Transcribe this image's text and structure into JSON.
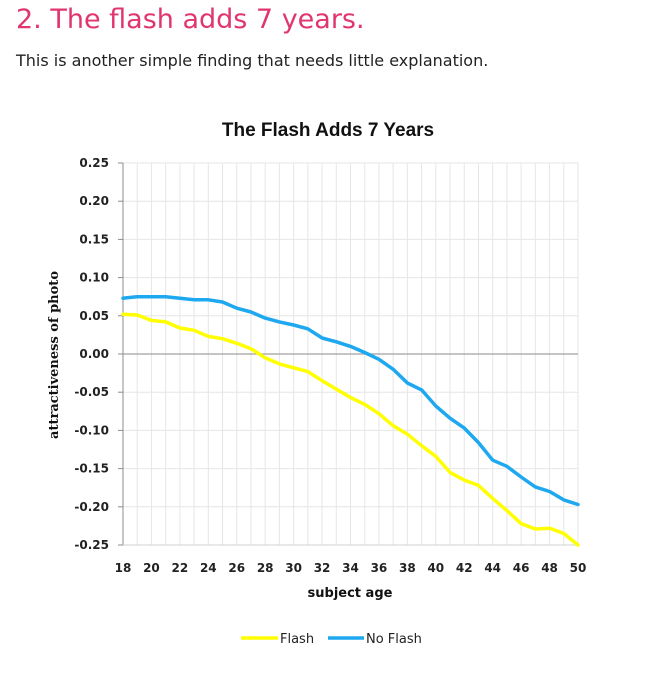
{
  "article": {
    "heading": "2. The flash adds 7 years.",
    "intro": "This is another simple finding that needs little explanation."
  },
  "chart_data": {
    "type": "line",
    "title": "The Flash Adds 7 Years",
    "xlabel": "subject age",
    "ylabel": "attractiveness of photo",
    "xlim": [
      18,
      50
    ],
    "ylim": [
      -0.25,
      0.25
    ],
    "x_ticks": [
      "18",
      "20",
      "22",
      "24",
      "26",
      "28",
      "30",
      "32",
      "34",
      "36",
      "38",
      "40",
      "42",
      "44",
      "46",
      "48",
      "50"
    ],
    "y_ticks": [
      "0.25",
      "0.20",
      "0.15",
      "0.10",
      "0.05",
      "0.00",
      "-0.05",
      "-0.10",
      "-0.15",
      "-0.20",
      "-0.25"
    ],
    "grid": true,
    "legend_position": "bottom",
    "x": [
      18,
      19,
      20,
      21,
      22,
      23,
      24,
      25,
      26,
      27,
      28,
      29,
      30,
      31,
      32,
      33,
      34,
      35,
      36,
      37,
      38,
      39,
      40,
      41,
      42,
      43,
      44,
      45,
      46,
      47,
      48,
      49,
      50
    ],
    "series": [
      {
        "name": "Flash",
        "color": "#ffff00",
        "values": [
          0.052,
          0.051,
          0.044,
          0.042,
          0.034,
          0.031,
          0.023,
          0.02,
          0.014,
          0.007,
          -0.005,
          -0.013,
          -0.018,
          -0.023,
          -0.035,
          -0.046,
          -0.057,
          -0.066,
          -0.078,
          -0.094,
          -0.105,
          -0.12,
          -0.134,
          -0.155,
          -0.165,
          -0.172,
          -0.189,
          -0.205,
          -0.222,
          -0.229,
          -0.228,
          -0.235,
          -0.25
        ]
      },
      {
        "name": "No Flash",
        "color": "#1ea8f0",
        "values": [
          0.073,
          0.075,
          0.075,
          0.075,
          0.073,
          0.071,
          0.071,
          0.068,
          0.06,
          0.055,
          0.047,
          0.042,
          0.038,
          0.033,
          0.021,
          0.016,
          0.01,
          0.002,
          -0.007,
          -0.02,
          -0.038,
          -0.047,
          -0.068,
          -0.084,
          -0.097,
          -0.116,
          -0.139,
          -0.147,
          -0.161,
          -0.174,
          -0.18,
          -0.191,
          -0.197
        ]
      }
    ]
  }
}
